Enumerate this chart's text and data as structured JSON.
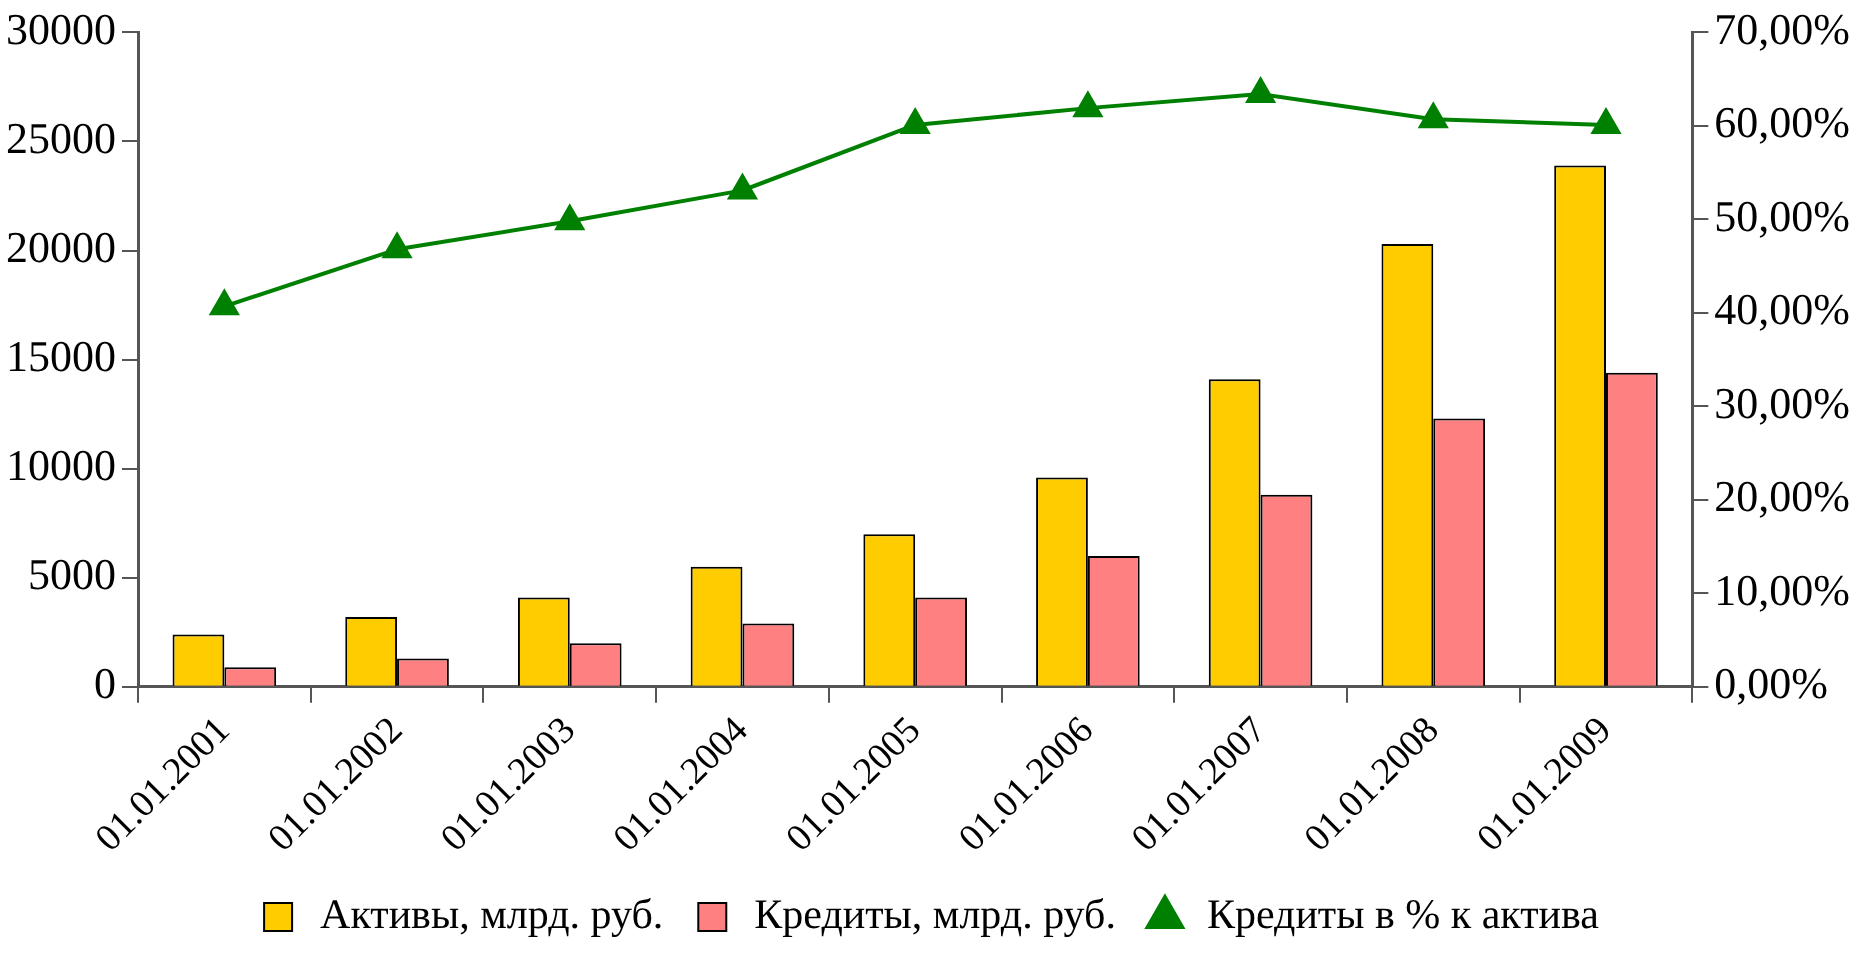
{
  "chart_data": {
    "type": "bar",
    "categories": [
      "01.01.2001",
      "01.01.2002",
      "01.01.2003",
      "01.01.2004",
      "01.01.2005",
      "01.01.2006",
      "01.01.2007",
      "01.01.2008",
      "01.01.2009"
    ],
    "series": [
      {
        "name": "Активы, млрд. руб.",
        "color": "#ffcc00",
        "values": [
          2400,
          3200,
          4100,
          5500,
          7000,
          9600,
          14100,
          20300,
          23900
        ]
      },
      {
        "name": "Кредиты, млрд. руб.",
        "color": "#ff8080",
        "values": [
          900,
          1300,
          2000,
          2900,
          4100,
          6000,
          8800,
          12300,
          14400
        ]
      },
      {
        "name": "Кредиты в % к актива",
        "type": "line",
        "axis": "y2",
        "color": "#008000",
        "marker": "triangle",
        "values": [
          40.7,
          46.8,
          49.8,
          53.1,
          60.1,
          61.9,
          63.4,
          60.7,
          60.1
        ]
      }
    ],
    "ylim": [
      0,
      30000
    ],
    "yticks": [
      0,
      5000,
      10000,
      15000,
      20000,
      25000,
      30000
    ],
    "y2lim": [
      0,
      70
    ],
    "y2ticks": [
      {
        "value": 0,
        "label": "0,00%"
      },
      {
        "value": 10,
        "label": "10,00%"
      },
      {
        "value": 20,
        "label": "20,00%"
      },
      {
        "value": 30,
        "label": "30,00%"
      },
      {
        "value": 40,
        "label": "40,00%"
      },
      {
        "value": 50,
        "label": "50,00%"
      },
      {
        "value": 60,
        "label": "60,00%"
      },
      {
        "value": 70,
        "label": "70,00%"
      }
    ],
    "grid": false,
    "legend": "bottom"
  }
}
